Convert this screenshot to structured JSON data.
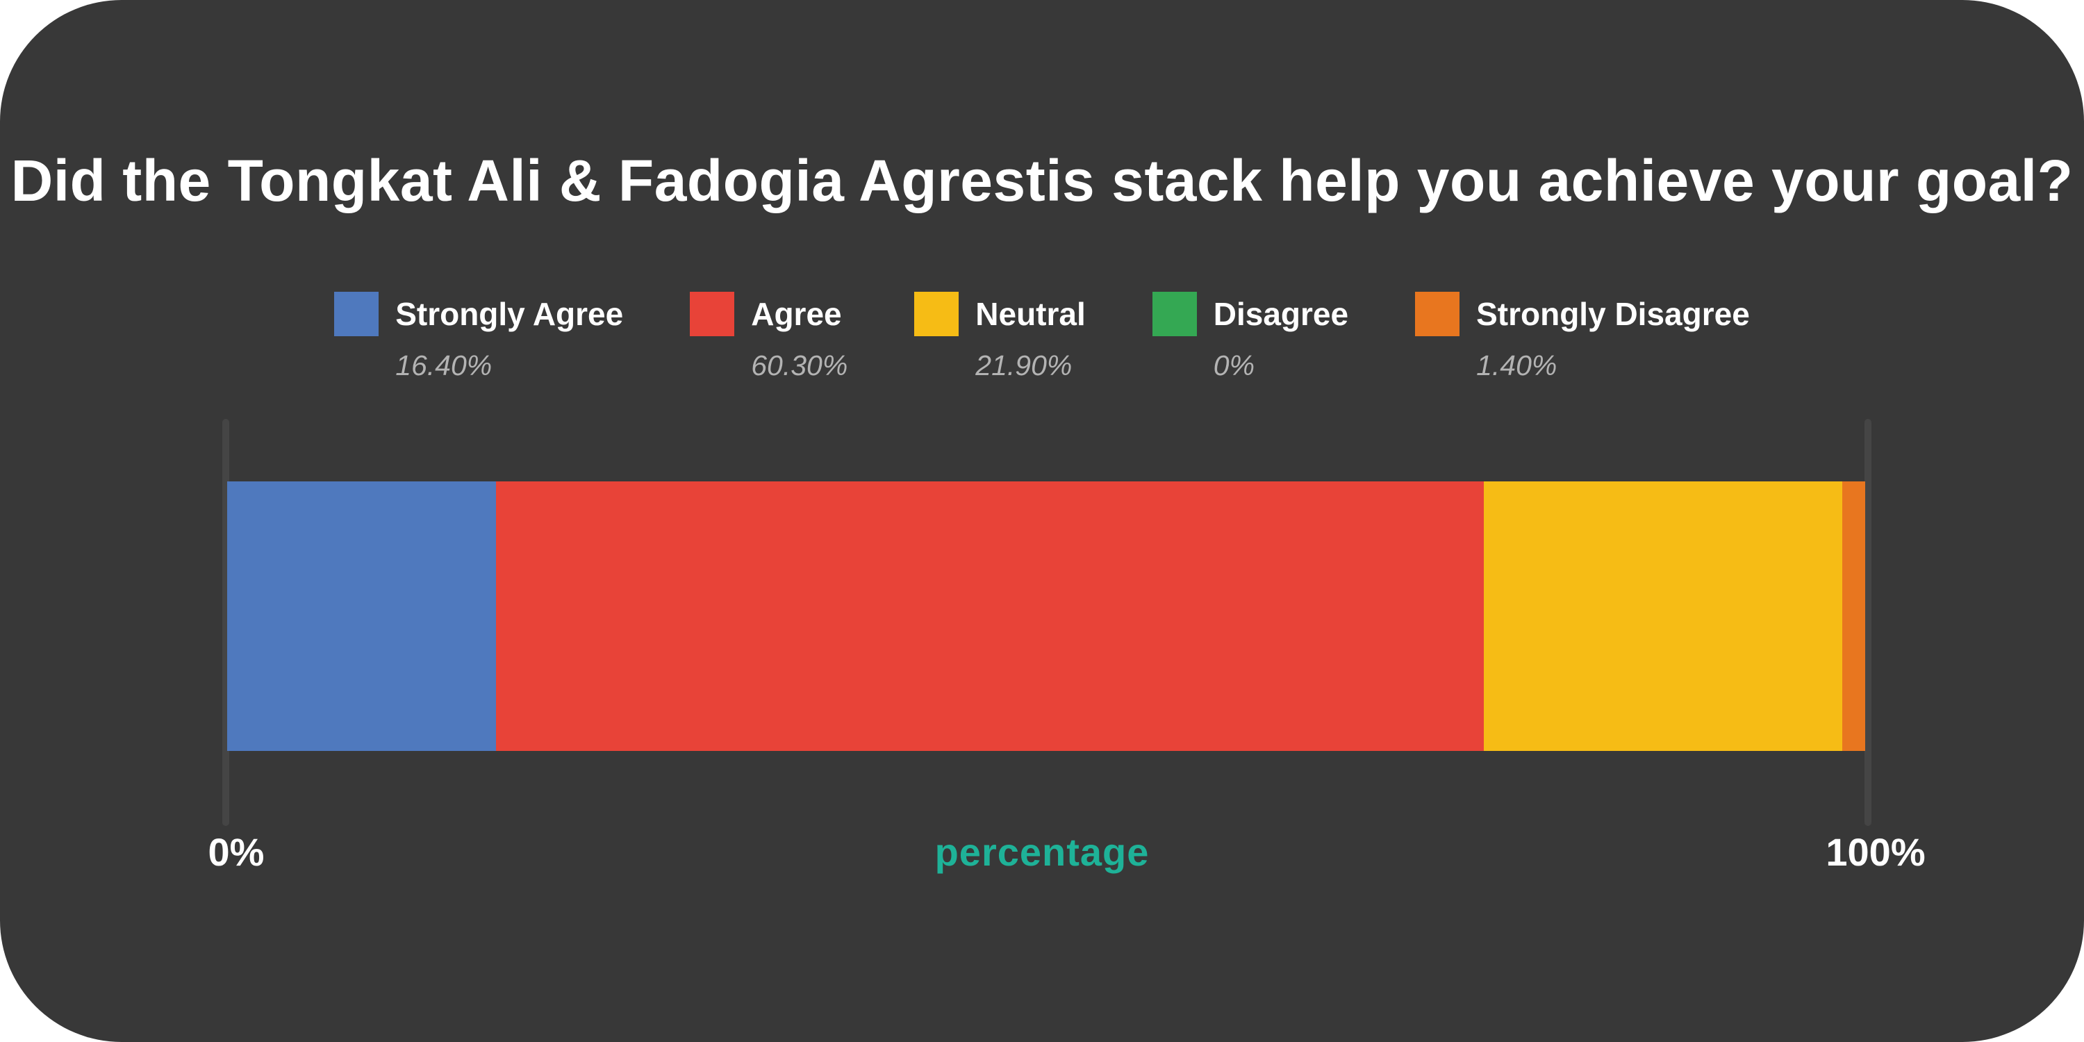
{
  "title": "Did the Tongkat Ali & Fadogia Agrestis stack help you achieve your goal?",
  "colors": {
    "page_background": "#ffffff",
    "card_background": "#383838",
    "title_text": "#ffffff",
    "legend_value_text": "#b3b3b3",
    "axis_label_text": "#ffffff",
    "xlabel_text": "#1eb298",
    "tick_line": "#454545"
  },
  "legend": {
    "items": [
      {
        "label": "Strongly Agree",
        "value": "16.40%",
        "color": "#4f79be"
      },
      {
        "label": "Agree",
        "value": "60.30%",
        "color": "#e84338"
      },
      {
        "label": "Neutral",
        "value": "21.90%",
        "color": "#f6bc15"
      },
      {
        "label": "Disagree",
        "value": "0%",
        "color": "#34a853"
      },
      {
        "label": "Strongly Disagree",
        "value": "1.40%",
        "color": "#e8761f"
      }
    ]
  },
  "axis": {
    "min_label": "0%",
    "max_label": "100%",
    "xlabel": "percentage"
  },
  "chart_data": {
    "type": "bar",
    "subtype": "horizontal-stacked",
    "title": "Did the Tongkat Ali & Fadogia Agrestis stack help you achieve your goal?",
    "categories": [
      "Strongly Agree",
      "Agree",
      "Neutral",
      "Disagree",
      "Strongly Disagree"
    ],
    "values": [
      16.4,
      60.3,
      21.9,
      0,
      1.4
    ],
    "value_labels": [
      "16.40%",
      "60.30%",
      "21.90%",
      "0%",
      "1.40%"
    ],
    "colors": [
      "#4f79be",
      "#e84338",
      "#f6bc15",
      "#34a853",
      "#e8761f"
    ],
    "xlabel": "percentage",
    "ylabel": "",
    "xlim": [
      0,
      100
    ],
    "x_tick_labels": [
      "0%",
      "100%"
    ],
    "grid": false,
    "legend_position": "top"
  }
}
